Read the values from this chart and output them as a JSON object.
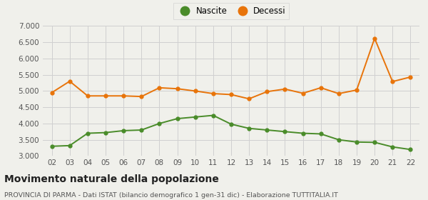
{
  "years": [
    2,
    3,
    4,
    5,
    6,
    7,
    8,
    9,
    10,
    11,
    12,
    13,
    14,
    15,
    16,
    17,
    18,
    19,
    20,
    21,
    22
  ],
  "nascite": [
    3300,
    3320,
    3700,
    3720,
    3780,
    3800,
    4000,
    4150,
    4200,
    4250,
    3980,
    3850,
    3800,
    3750,
    3700,
    3680,
    3500,
    3430,
    3420,
    3280,
    3200
  ],
  "decessi": [
    4950,
    5300,
    4850,
    4850,
    4850,
    4830,
    5100,
    5070,
    5000,
    4920,
    4890,
    4760,
    4980,
    5060,
    4930,
    5100,
    4920,
    5030,
    6620,
    5290,
    5430
  ],
  "nascite_color": "#4a8c2a",
  "decessi_color": "#e8740a",
  "background_color": "#f0f0eb",
  "grid_color": "#d0d0d0",
  "title": "Movimento naturale della popolazione",
  "subtitle": "PROVINCIA DI PARMA - Dati ISTAT (bilancio demografico 1 gen-31 dic) - Elaborazione TUTTITALIA.IT",
  "legend_nascite": "Nascite",
  "legend_decessi": "Decessi",
  "ylim": [
    3000,
    7000
  ],
  "yticks": [
    3000,
    3500,
    4000,
    4500,
    5000,
    5500,
    6000,
    6500,
    7000
  ],
  "marker_size": 3.5,
  "line_width": 1.4,
  "tick_fontsize": 7.5,
  "title_fontsize": 10,
  "subtitle_fontsize": 6.8,
  "legend_fontsize": 8.5
}
